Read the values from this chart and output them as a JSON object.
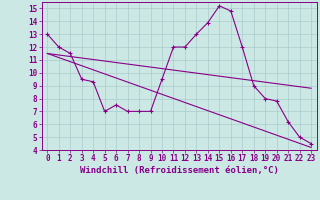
{
  "xlabel": "Windchill (Refroidissement éolien,°C)",
  "bg_color": "#cce8e4",
  "line_color": "#880088",
  "grid_color": "#aacccc",
  "xlim": [
    -0.5,
    23.5
  ],
  "ylim": [
    4,
    15.5
  ],
  "xticks": [
    0,
    1,
    2,
    3,
    4,
    5,
    6,
    7,
    8,
    9,
    10,
    11,
    12,
    13,
    14,
    15,
    16,
    17,
    18,
    19,
    20,
    21,
    22,
    23
  ],
  "yticks": [
    4,
    5,
    6,
    7,
    8,
    9,
    10,
    11,
    12,
    13,
    14,
    15
  ],
  "main_x": [
    0,
    1,
    2,
    3,
    4,
    5,
    6,
    7,
    8,
    9,
    10,
    11,
    12,
    13,
    14,
    15,
    16,
    17,
    18,
    19,
    20,
    21,
    22,
    23
  ],
  "main_y": [
    13,
    12,
    11.5,
    9.5,
    9.3,
    7.0,
    7.5,
    7.0,
    7.0,
    7.0,
    9.5,
    12.0,
    12.0,
    13.0,
    13.9,
    15.2,
    14.8,
    12.0,
    9.0,
    8.0,
    7.8,
    6.2,
    5.0,
    4.5
  ],
  "line2_x": [
    0,
    23
  ],
  "line2_y": [
    11.5,
    4.2
  ],
  "line3_x": [
    0,
    23
  ],
  "line3_y": [
    11.5,
    8.8
  ],
  "font_size": 6.5,
  "tick_font_size": 5.5
}
